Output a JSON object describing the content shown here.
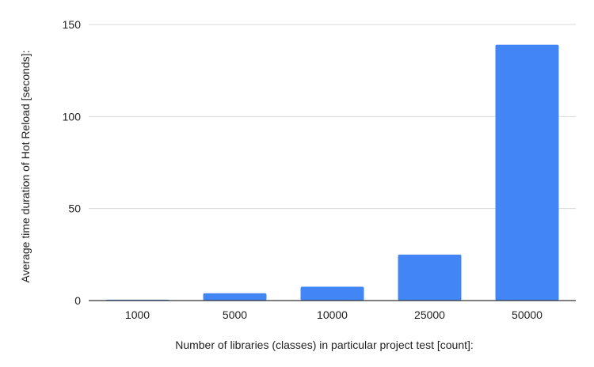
{
  "chart_data": {
    "type": "bar",
    "title": "",
    "xlabel": "Number of libraries (classes) in particular project test [count]:",
    "ylabel": "Average time duration of Hot Reload [seconds]:",
    "categories": [
      "1000",
      "5000",
      "10000",
      "25000",
      "50000"
    ],
    "values": [
      0.5,
      4,
      7.5,
      25,
      139
    ],
    "ylim": [
      0,
      150
    ],
    "yticks": [
      0,
      50,
      100,
      150
    ],
    "grid": true,
    "legend": "none",
    "colors": {
      "bar": "#4285F4",
      "grid": "#d9d9d9",
      "axis": "#333333",
      "text": "#222222"
    }
  }
}
